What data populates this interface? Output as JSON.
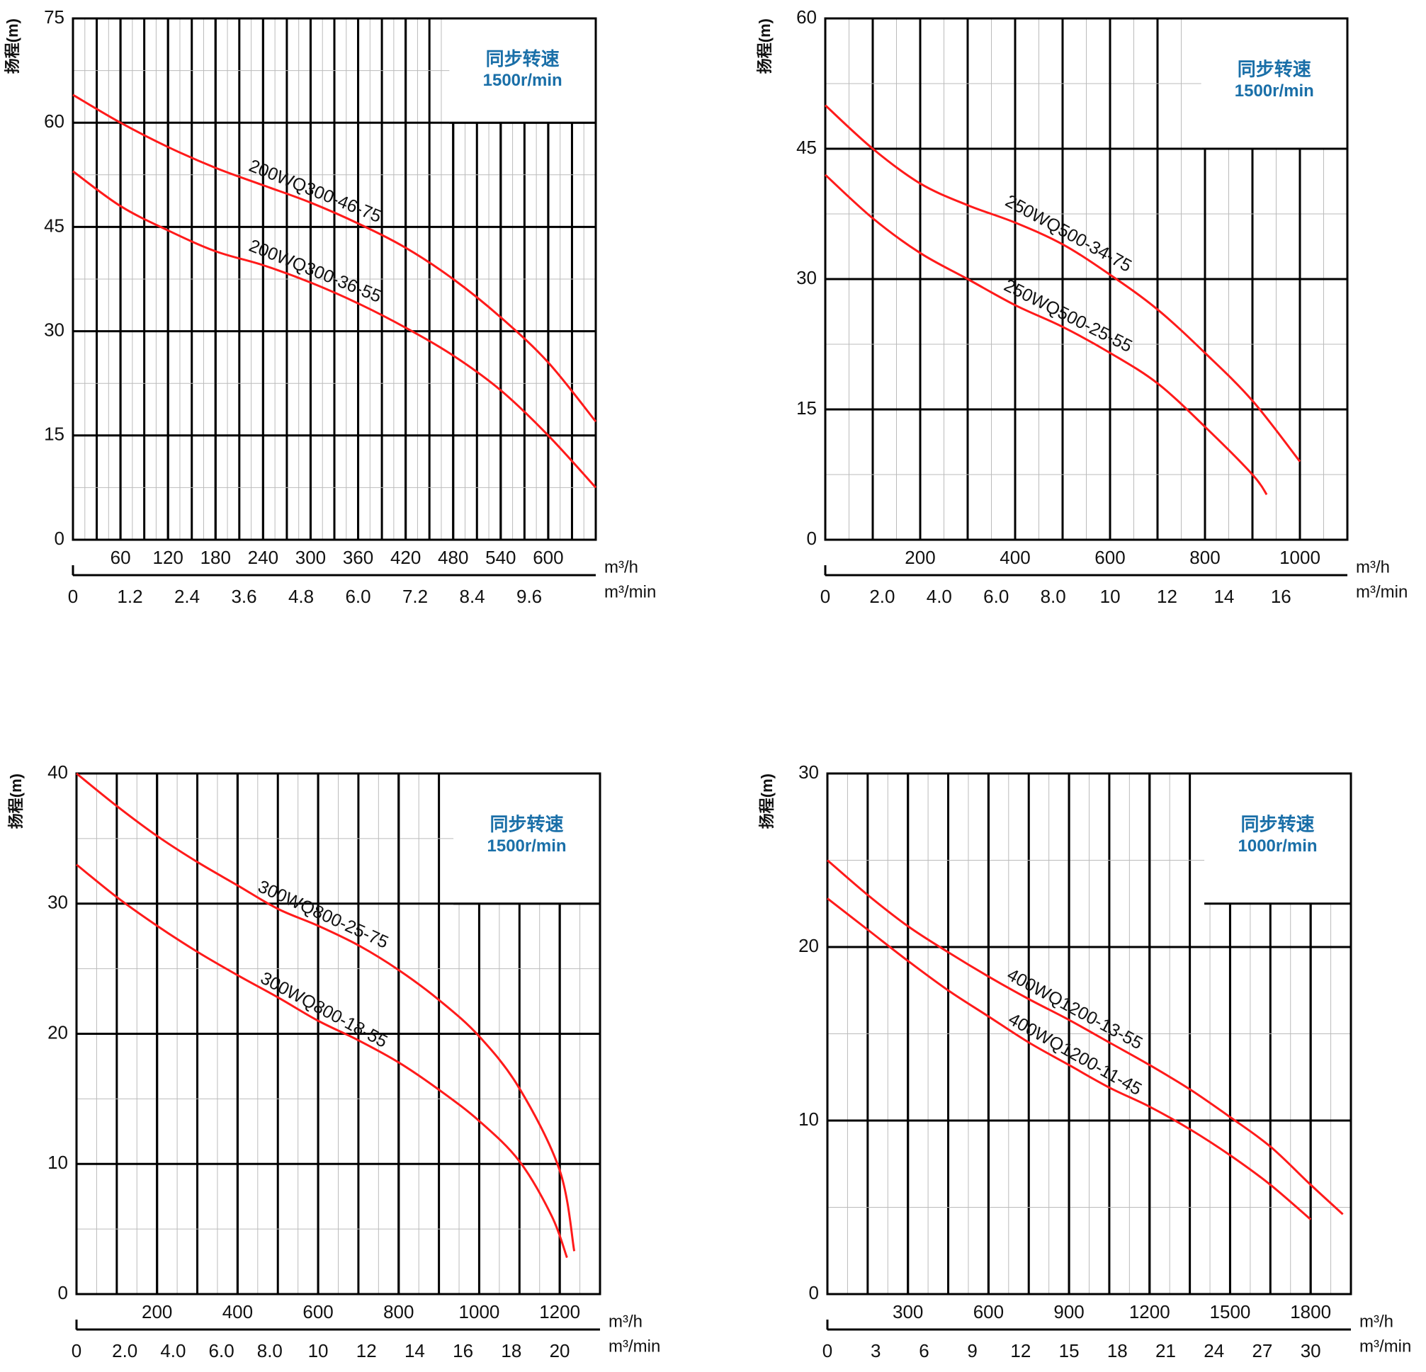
{
  "chart_data": [
    {
      "type": "line",
      "ylabel": "扬程(m)",
      "annotations": [
        "同步转速",
        "1500r/min"
      ],
      "xlabel": "m³/h",
      "x2label": "m³/min",
      "xlim": [
        0,
        660
      ],
      "xticks": [
        60,
        120,
        180,
        240,
        300,
        360,
        420,
        480,
        540,
        600
      ],
      "x2lim": [
        0,
        11
      ],
      "x2ticks": [
        0,
        1.2,
        2.4,
        3.6,
        4.8,
        {
          "value": 6,
          "label": "6.0"
        },
        7.2,
        8.4,
        9.6
      ],
      "ylim": [
        0,
        75
      ],
      "yticks": [
        0,
        15,
        30,
        45,
        60,
        75
      ],
      "grid": true,
      "series": [
        {
          "name": "200WQ300-46-75",
          "color": "#ff1a1a",
          "x": [
            0,
            60,
            120,
            180,
            240,
            300,
            360,
            420,
            480,
            540,
            600,
            660
          ],
          "values": [
            64,
            60,
            56.5,
            53.5,
            51,
            48.5,
            45.5,
            42,
            37.5,
            32,
            25.5,
            17
          ]
        },
        {
          "name": "200WQ300-36-55",
          "color": "#ff1a1a",
          "x": [
            0,
            60,
            120,
            180,
            240,
            300,
            360,
            420,
            480,
            540,
            600,
            660
          ],
          "values": [
            53,
            48,
            44.5,
            41.5,
            39.5,
            37,
            34,
            30.5,
            26.5,
            21.5,
            15,
            7.5
          ]
        }
      ]
    },
    {
      "type": "line",
      "ylabel": "扬程(m)",
      "annotations": [
        "同步转速",
        "1500r/min"
      ],
      "xlabel": "m³/h",
      "x2label": "m³/min",
      "xlim": [
        0,
        1100
      ],
      "xticks": [
        200,
        400,
        600,
        800,
        1000
      ],
      "x2lim": [
        0,
        18.33
      ],
      "x2ticks": [
        0,
        {
          "value": 2,
          "label": "2.0"
        },
        {
          "value": 4,
          "label": "4.0"
        },
        {
          "value": 6,
          "label": "6.0"
        },
        {
          "value": 8,
          "label": "8.0"
        },
        10,
        12,
        14,
        16
      ],
      "ylim": [
        0,
        60
      ],
      "yticks": [
        0,
        15,
        30,
        45,
        60
      ],
      "grid": true,
      "series": [
        {
          "name": "250WQ500-34-75",
          "color": "#ff1a1a",
          "x": [
            0,
            100,
            200,
            300,
            400,
            500,
            600,
            700,
            800,
            900,
            1000
          ],
          "values": [
            50,
            45,
            41,
            38.5,
            36.5,
            34,
            30.5,
            26.5,
            21.5,
            16,
            9
          ]
        },
        {
          "name": "250WQ500-25-55",
          "color": "#ff1a1a",
          "x": [
            0,
            100,
            200,
            300,
            400,
            500,
            600,
            700,
            800,
            900,
            930
          ],
          "values": [
            42,
            37,
            33,
            30,
            27,
            24.5,
            21.5,
            18,
            13,
            7.5,
            5.2
          ]
        }
      ]
    },
    {
      "type": "line",
      "ylabel": "扬程(m)",
      "annotations": [
        "同步转速",
        "1500r/min"
      ],
      "xlabel": "m³/h",
      "x2label": "m³/min",
      "xlim": [
        0,
        1300
      ],
      "xticks": [
        200,
        400,
        600,
        800,
        1000,
        1200
      ],
      "x2lim": [
        0,
        21.67
      ],
      "x2ticks": [
        0,
        {
          "value": 2,
          "label": "2.0"
        },
        {
          "value": 4,
          "label": "4.0"
        },
        {
          "value": 6,
          "label": "6.0"
        },
        {
          "value": 8,
          "label": "8.0"
        },
        10,
        12,
        14,
        16,
        18,
        20
      ],
      "ylim": [
        0,
        40
      ],
      "yticks": [
        0,
        10,
        20,
        30,
        40
      ],
      "grid": true,
      "series": [
        {
          "name": "300WQ800-25-75",
          "color": "#ff1a1a",
          "x": [
            0,
            100,
            200,
            300,
            400,
            500,
            600,
            700,
            800,
            900,
            1000,
            1100,
            1200,
            1236
          ],
          "values": [
            40,
            37.5,
            35.2,
            33.2,
            31.4,
            29.6,
            28.3,
            26.8,
            24.9,
            22.6,
            19.8,
            15.8,
            9.5,
            3.3
          ]
        },
        {
          "name": "300WQ800-18-55",
          "color": "#ff1a1a",
          "x": [
            0,
            100,
            200,
            300,
            400,
            500,
            600,
            700,
            800,
            900,
            1000,
            1100,
            1180,
            1218
          ],
          "values": [
            33,
            30.5,
            28.3,
            26.3,
            24.5,
            22.8,
            21,
            19.5,
            17.8,
            15.7,
            13.3,
            10.2,
            6,
            2.8
          ]
        }
      ]
    },
    {
      "type": "line",
      "ylabel": "扬程(m)",
      "annotations": [
        "同步转速",
        "1000r/min"
      ],
      "xlabel": "m³/h",
      "x2label": "m³/min",
      "xlim": [
        0,
        1950
      ],
      "xticks": [
        300,
        600,
        900,
        1200,
        1500,
        1800
      ],
      "x2lim": [
        0,
        32.5
      ],
      "x2ticks": [
        0,
        3,
        6,
        9,
        12,
        15,
        18,
        21,
        24,
        27,
        30
      ],
      "ylim": [
        0,
        30
      ],
      "yticks": [
        0,
        10,
        20,
        30
      ],
      "grid": true,
      "series": [
        {
          "name": "400WQ1200-13-55",
          "color": "#ff1a1a",
          "x": [
            0,
            150,
            300,
            450,
            600,
            750,
            900,
            1050,
            1200,
            1350,
            1500,
            1650,
            1800,
            1920
          ],
          "values": [
            25,
            23,
            21.2,
            19.7,
            18.3,
            17,
            15.8,
            14.5,
            13.2,
            11.8,
            10.2,
            8.5,
            6.3,
            4.6
          ]
        },
        {
          "name": "400WQ1200-11-45",
          "color": "#ff1a1a",
          "x": [
            0,
            150,
            300,
            450,
            600,
            750,
            900,
            1050,
            1200,
            1350,
            1500,
            1650,
            1800
          ],
          "values": [
            22.8,
            21,
            19.2,
            17.5,
            16,
            14.5,
            13.2,
            11.9,
            10.8,
            9.5,
            8,
            6.3,
            4.3
          ]
        }
      ]
    }
  ]
}
